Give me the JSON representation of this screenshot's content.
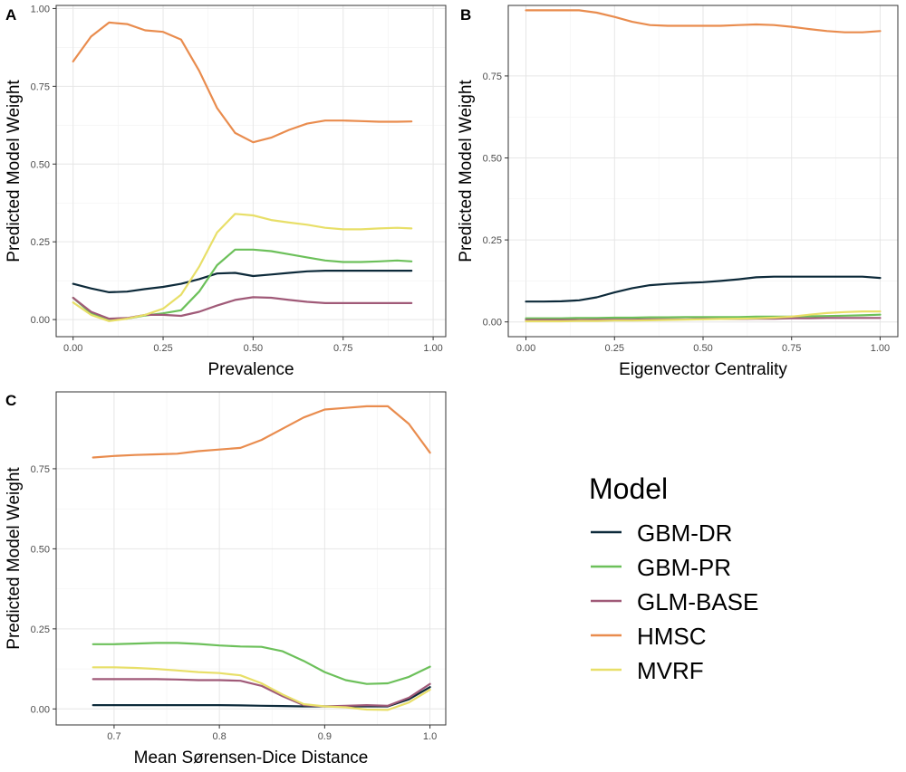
{
  "legend": {
    "title": "Model",
    "entries": [
      {
        "label": "GBM-DR",
        "color": "#0d2a3a"
      },
      {
        "label": "GBM-PR",
        "color": "#6cc05a"
      },
      {
        "label": "GLM-BASE",
        "color": "#a05a78"
      },
      {
        "label": "HMSC",
        "color": "#e98c4e"
      },
      {
        "label": "MVRF",
        "color": "#e8df68"
      }
    ]
  },
  "chart_data": [
    {
      "type": "line",
      "panel": "A",
      "xlabel": "Prevalence",
      "ylabel": "Predicted Model Weight",
      "xlim": [
        -0.047,
        1.035
      ],
      "ylim": [
        -0.055,
        1.01
      ],
      "xticks": [
        "0.00",
        "0.25",
        "0.50",
        "0.75",
        "1.00"
      ],
      "yticks": [
        "0.00",
        "0.25",
        "0.50",
        "0.75",
        "1.00"
      ],
      "grid": true,
      "x": [
        0.0,
        0.05,
        0.1,
        0.15,
        0.2,
        0.25,
        0.3,
        0.35,
        0.4,
        0.45,
        0.5,
        0.55,
        0.6,
        0.65,
        0.7,
        0.75,
        0.8,
        0.85,
        0.9,
        0.94
      ],
      "series": [
        {
          "name": "GBM-DR",
          "values": [
            0.115,
            0.1,
            0.088,
            0.09,
            0.098,
            0.105,
            0.115,
            0.13,
            0.148,
            0.15,
            0.14,
            0.145,
            0.15,
            0.155,
            0.157,
            0.157,
            0.157,
            0.157,
            0.157,
            0.157
          ]
        },
        {
          "name": "GBM-PR",
          "values": [
            0.07,
            0.02,
            0.002,
            0.003,
            0.013,
            0.02,
            0.03,
            0.09,
            0.175,
            0.225,
            0.225,
            0.22,
            0.21,
            0.2,
            0.19,
            0.185,
            0.185,
            0.187,
            0.19,
            0.187
          ]
        },
        {
          "name": "GLM-BASE",
          "values": [
            0.07,
            0.025,
            0.003,
            0.005,
            0.015,
            0.015,
            0.012,
            0.025,
            0.045,
            0.063,
            0.072,
            0.07,
            0.063,
            0.057,
            0.053,
            0.053,
            0.053,
            0.053,
            0.053,
            0.053
          ]
        },
        {
          "name": "HMSC",
          "values": [
            0.83,
            0.91,
            0.955,
            0.95,
            0.93,
            0.925,
            0.9,
            0.8,
            0.68,
            0.6,
            0.57,
            0.585,
            0.61,
            0.63,
            0.64,
            0.64,
            0.638,
            0.636,
            0.636,
            0.637
          ]
        },
        {
          "name": "MVRF",
          "values": [
            0.055,
            0.015,
            -0.005,
            0.003,
            0.015,
            0.035,
            0.08,
            0.17,
            0.28,
            0.34,
            0.335,
            0.32,
            0.312,
            0.305,
            0.295,
            0.29,
            0.29,
            0.293,
            0.295,
            0.293
          ]
        }
      ]
    },
    {
      "type": "line",
      "panel": "B",
      "xlabel": "Eigenvector Centrality",
      "ylabel": "Predicted Model Weight",
      "xlim": [
        -0.05,
        1.05
      ],
      "ylim": [
        -0.045,
        0.965
      ],
      "xticks": [
        "0.00",
        "0.25",
        "0.50",
        "0.75",
        "1.00"
      ],
      "yticks": [
        "0.00",
        "0.25",
        "0.50",
        "0.75"
      ],
      "grid": true,
      "x": [
        0.0,
        0.05,
        0.1,
        0.15,
        0.2,
        0.25,
        0.3,
        0.35,
        0.4,
        0.45,
        0.5,
        0.55,
        0.6,
        0.65,
        0.7,
        0.75,
        0.8,
        0.85,
        0.9,
        0.95,
        1.0
      ],
      "series": [
        {
          "name": "GBM-DR",
          "values": [
            0.062,
            0.062,
            0.063,
            0.066,
            0.075,
            0.09,
            0.103,
            0.112,
            0.116,
            0.119,
            0.121,
            0.125,
            0.13,
            0.136,
            0.138,
            0.138,
            0.138,
            0.138,
            0.138,
            0.138,
            0.134
          ]
        },
        {
          "name": "GBM-PR",
          "values": [
            0.011,
            0.011,
            0.011,
            0.012,
            0.012,
            0.013,
            0.013,
            0.014,
            0.014,
            0.015,
            0.015,
            0.015,
            0.015,
            0.016,
            0.016,
            0.016,
            0.017,
            0.018,
            0.019,
            0.02,
            0.022
          ]
        },
        {
          "name": "GLM-BASE",
          "values": [
            0.006,
            0.006,
            0.006,
            0.006,
            0.007,
            0.007,
            0.007,
            0.008,
            0.008,
            0.008,
            0.009,
            0.009,
            0.009,
            0.01,
            0.01,
            0.011,
            0.011,
            0.012,
            0.012,
            0.012,
            0.012
          ]
        },
        {
          "name": "HMSC",
          "values": [
            0.95,
            0.95,
            0.95,
            0.95,
            0.943,
            0.93,
            0.915,
            0.905,
            0.903,
            0.903,
            0.903,
            0.903,
            0.905,
            0.907,
            0.905,
            0.9,
            0.893,
            0.887,
            0.883,
            0.883,
            0.887
          ]
        },
        {
          "name": "MVRF",
          "values": [
            0.002,
            0.002,
            0.002,
            0.003,
            0.003,
            0.004,
            0.004,
            0.005,
            0.006,
            0.007,
            0.008,
            0.009,
            0.01,
            0.011,
            0.013,
            0.016,
            0.022,
            0.027,
            0.03,
            0.032,
            0.032
          ]
        }
      ]
    },
    {
      "type": "line",
      "panel": "C",
      "xlabel": "Mean Sørensen-Dice Distance",
      "ylabel": "Predicted Model Weight",
      "xlim": [
        0.645,
        1.015
      ],
      "ylim": [
        -0.05,
        0.99
      ],
      "xticks": [
        "0.7",
        "0.8",
        "0.9",
        "1.0"
      ],
      "yticks": [
        "0.00",
        "0.25",
        "0.50",
        "0.75"
      ],
      "grid": true,
      "x": [
        0.68,
        0.7,
        0.72,
        0.74,
        0.76,
        0.78,
        0.8,
        0.82,
        0.84,
        0.86,
        0.88,
        0.9,
        0.92,
        0.94,
        0.96,
        0.98,
        1.0
      ],
      "series": [
        {
          "name": "GBM-DR",
          "values": [
            0.012,
            0.012,
            0.012,
            0.012,
            0.012,
            0.012,
            0.012,
            0.011,
            0.01,
            0.009,
            0.008,
            0.008,
            0.008,
            0.008,
            0.008,
            0.03,
            0.068
          ]
        },
        {
          "name": "GBM-PR",
          "values": [
            0.202,
            0.202,
            0.204,
            0.206,
            0.206,
            0.203,
            0.198,
            0.195,
            0.194,
            0.18,
            0.15,
            0.115,
            0.09,
            0.078,
            0.08,
            0.1,
            0.132
          ]
        },
        {
          "name": "GLM-BASE",
          "values": [
            0.093,
            0.093,
            0.093,
            0.093,
            0.092,
            0.09,
            0.09,
            0.088,
            0.072,
            0.04,
            0.012,
            0.008,
            0.01,
            0.012,
            0.01,
            0.035,
            0.078
          ]
        },
        {
          "name": "HMSC",
          "values": [
            0.785,
            0.79,
            0.793,
            0.795,
            0.797,
            0.805,
            0.81,
            0.815,
            0.84,
            0.875,
            0.91,
            0.935,
            0.94,
            0.945,
            0.945,
            0.89,
            0.8
          ]
        },
        {
          "name": "MVRF",
          "values": [
            0.13,
            0.13,
            0.128,
            0.125,
            0.12,
            0.115,
            0.112,
            0.105,
            0.08,
            0.045,
            0.015,
            0.008,
            0.005,
            -0.002,
            -0.003,
            0.02,
            0.06
          ]
        }
      ]
    }
  ]
}
